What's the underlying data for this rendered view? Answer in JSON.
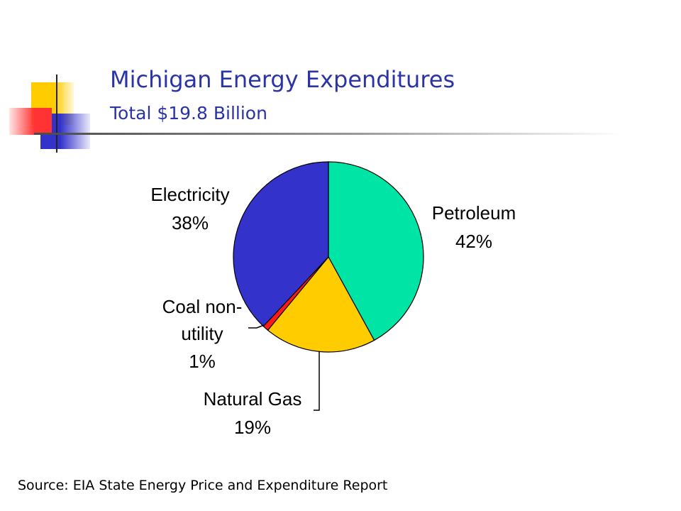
{
  "title": "Michigan Energy Expenditures",
  "subtitle": "Total $19.8 Billion",
  "source": "Source: EIA State Energy Price and Expenditure Report",
  "colors": {
    "title": "#2b34a6",
    "petroleum": "#00e4a6",
    "natural_gas": "#ffcc00",
    "coal": "#ff1a1a",
    "electricity": "#3333cc",
    "deco_yellow": "#ffcc00",
    "deco_blue": "#3333cc",
    "deco_red": "#ff4444"
  },
  "chart_data": {
    "type": "pie",
    "title": "",
    "slices": [
      {
        "name": "Petroleum",
        "value": 42,
        "label_line1": "Petroleum",
        "label_line2": "42%",
        "color": "#00e4a6"
      },
      {
        "name": "Natural Gas",
        "value": 19,
        "label_line1": "Natural Gas",
        "label_line2": "19%",
        "color": "#ffcc00"
      },
      {
        "name": "Coal non-utility",
        "value": 1,
        "label_line1": "Coal non-",
        "label_line2": "utility",
        "label_line3": "1%",
        "color": "#ff1a1a"
      },
      {
        "name": "Electricity",
        "value": 38,
        "label_line1": "Electricity",
        "label_line2": "38%",
        "color": "#3333cc"
      }
    ]
  }
}
